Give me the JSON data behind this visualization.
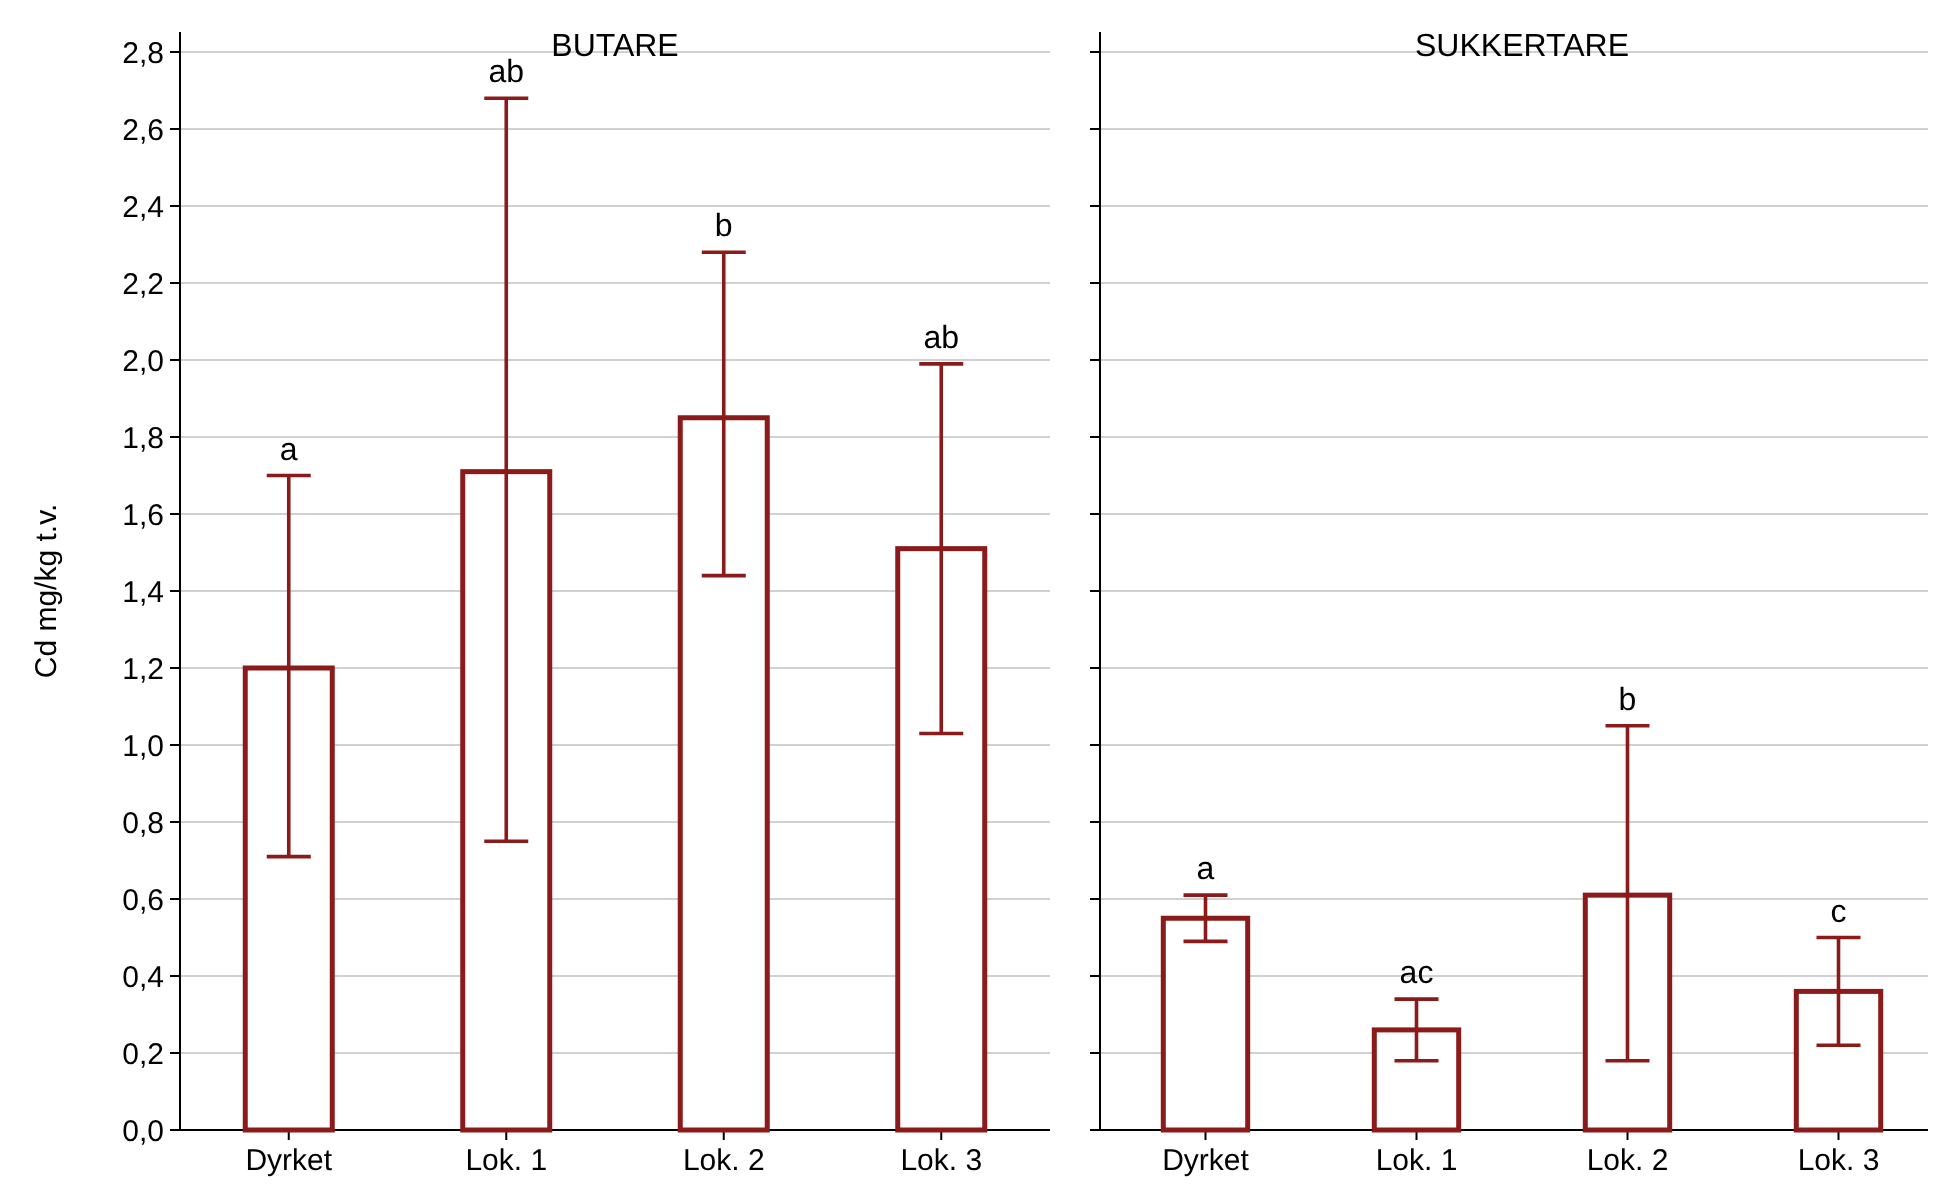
{
  "chart_data": [
    {
      "type": "bar",
      "title": "BUTARE",
      "ylabel": "Cd mg/kg t.v.",
      "categories": [
        "Dyrket",
        "Lok. 1",
        "Lok. 2",
        "Lok. 3"
      ],
      "values": [
        1.2,
        1.71,
        1.85,
        1.51
      ],
      "errors": [
        [
          0.71,
          1.7
        ],
        [
          0.75,
          2.68
        ],
        [
          1.44,
          2.28
        ],
        [
          1.03,
          1.99
        ]
      ],
      "color": "#8b1a1a",
      "ylim": [
        0,
        2.8
      ],
      "yticks": [
        {
          "value": 0,
          "label": "0,0"
        },
        {
          "value": 0.2,
          "label": "0,2"
        },
        {
          "value": 0.4,
          "label": "0,4"
        },
        {
          "value": 0.6,
          "label": "0,6"
        },
        {
          "value": 0.8,
          "label": "0,8"
        },
        {
          "value": 1,
          "label": "1,0"
        },
        {
          "value": 1.2,
          "label": "1,2"
        },
        {
          "value": 1.4,
          "label": "1,4"
        },
        {
          "value": 1.6,
          "label": "1,6"
        },
        {
          "value": 1.8,
          "label": "1,8"
        },
        {
          "value": 2,
          "label": "2,0"
        },
        {
          "value": 2.2,
          "label": "2,2"
        },
        {
          "value": 2.4,
          "label": "2,4"
        },
        {
          "value": 2.6,
          "label": "2,6"
        },
        {
          "value": 2.8,
          "label": "2,8"
        }
      ],
      "grid": "y",
      "annotations": [
        {
          "text": "a",
          "x": "Dyrket",
          "y": 1.7
        },
        {
          "text": "ab",
          "x": "Lok. 1",
          "y": 2.68
        },
        {
          "text": "b",
          "x": "Lok. 2",
          "y": 2.28
        },
        {
          "text": "ab",
          "x": "Lok. 3",
          "y": 1.99
        }
      ]
    },
    {
      "type": "bar",
      "title": "SUKKERTARE",
      "categories": [
        "Dyrket",
        "Lok. 1",
        "Lok. 2",
        "Lok. 3"
      ],
      "values": [
        0.55,
        0.26,
        0.61,
        0.36
      ],
      "errors": [
        [
          0.49,
          0.61
        ],
        [
          0.18,
          0.34
        ],
        [
          0.18,
          1.05
        ],
        [
          0.22,
          0.5
        ]
      ],
      "color": "#8b1a1a",
      "ylim": [
        0,
        2.8
      ],
      "yticks": [
        {
          "value": 0,
          "label": null
        },
        {
          "value": 0.2,
          "label": null
        },
        {
          "value": 0.4,
          "label": null
        },
        {
          "value": 0.6,
          "label": null
        },
        {
          "value": 0.8,
          "label": null
        },
        {
          "value": 1,
          "label": null
        },
        {
          "value": 1.2,
          "label": null
        },
        {
          "value": 1.4,
          "label": null
        },
        {
          "value": 1.6,
          "label": null
        },
        {
          "value": 1.8,
          "label": null
        },
        {
          "value": 2,
          "label": null
        },
        {
          "value": 2.2,
          "label": null
        },
        {
          "value": 2.4,
          "label": null
        },
        {
          "value": 2.6,
          "label": null
        },
        {
          "value": 2.8,
          "label": null
        }
      ],
      "grid": "y",
      "tick_labels": "x",
      "annotations": [
        {
          "text": "a",
          "x": "Dyrket",
          "y": 0.61
        },
        {
          "text": "ac",
          "x": "Lok. 1",
          "y": 0.34
        },
        {
          "text": "b",
          "x": "Lok. 2",
          "y": 1.05
        },
        {
          "text": "c",
          "x": "Lok. 3",
          "y": 0.5
        }
      ]
    }
  ]
}
